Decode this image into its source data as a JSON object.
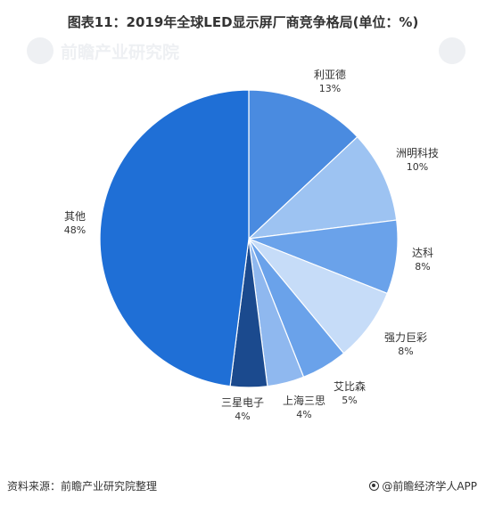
{
  "header": {
    "title": "图表11：2019年全球LED显示屏厂商竞争格局(单位：%)"
  },
  "footer": {
    "source": "资料来源：前瞻产业研究院整理",
    "brand": "@前瞻经济学人APP"
  },
  "watermark": {
    "text": "前瞻产业研究院"
  },
  "colors": {
    "line": "#9aa4b0",
    "text": "#333333"
  },
  "chart_data": {
    "type": "pie",
    "title": "图表11：2019年全球LED显示屏厂商竞争格局(单位：%)",
    "slices": [
      {
        "name": "利亚德",
        "value": 13,
        "label": "13%",
        "color": "#4a8be0"
      },
      {
        "name": "洲明科技",
        "value": 10,
        "label": "10%",
        "color": "#9dc3f2"
      },
      {
        "name": "达科",
        "value": 8,
        "label": "8%",
        "color": "#6aa2ea"
      },
      {
        "name": "强力巨彩",
        "value": 8,
        "label": "8%",
        "color": "#c6dcf8"
      },
      {
        "name": "艾比森",
        "value": 5,
        "label": "5%",
        "color": "#6aa2ea"
      },
      {
        "name": "上海三思",
        "value": 4,
        "label": "4%",
        "color": "#8fb8ef"
      },
      {
        "name": "三星电子",
        "value": 4,
        "label": "4%",
        "color": "#1b4a8e"
      },
      {
        "name": "其他",
        "value": 48,
        "label": "48%",
        "color": "#1f6fd6"
      }
    ],
    "start_angle": "12 o'clock",
    "direction": "clockwise"
  }
}
